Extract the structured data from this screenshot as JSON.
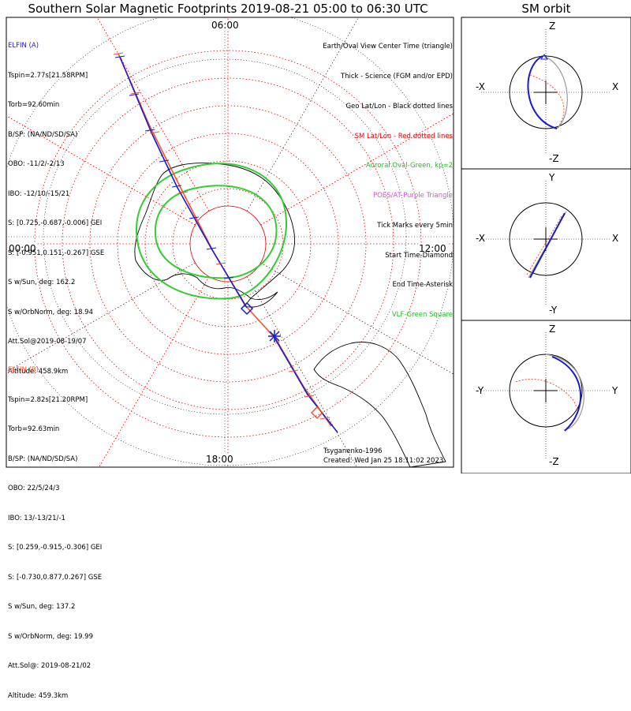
{
  "title": "Southern Solar Magnetic Footprints 2019-08-21 05:00 to 06:30 UTC",
  "orbit_title": "SM orbit",
  "local_time_labels": {
    "top": "06:00",
    "left": "00:00",
    "right": "12:00",
    "bottom": "18:00"
  },
  "elfin_a": {
    "label": "ELFIN (A)",
    "color": "#1a1acc",
    "lines": [
      "Tspin=2.77s[21.58RPM]",
      "Torb=92.60min",
      "B/SP: (NA/ND/SD/SA)",
      "OBO: -11/2/-2/13",
      "IBO: -12/10/-15/21",
      "S: [0.725,-0.687,-0.006] GEI",
      "S: [-0.951,0.151,-0.267] GSE",
      "S w/Sun, deg: 162.2",
      "S w/OrbNorm, deg: 18.94",
      "Att.Sol@2019-08-19/07",
      "Altitude: 458.9km"
    ]
  },
  "elfin_b": {
    "label": "ELFIN (B)",
    "color": "#ee5533",
    "lines": [
      "Tspin=2.82s[21.20RPM]",
      "Torb=92.63min",
      "B/SP: (NA/ND/SD/SA)",
      "OBO: 22/5/24/3",
      "IBO: 13/-13/21/-1",
      "S: [0.259,-0.915,-0.306] GEI",
      "S: [-0.730,0.877,0.267] GSE",
      "S w/Sun, deg: 137.2",
      "S w/OrbNorm, deg: 19.99",
      "Att.Sol@: 2019-08-21/02",
      "Altitude: 459.3km"
    ]
  },
  "legend": [
    {
      "text": "Earth/Oval View Center Time (triangle)",
      "color": "#000000"
    },
    {
      "text": "Thick - Science (FGM and/or EPD)",
      "color": "#000000"
    },
    {
      "text": "Geo Lat/Lon - Black dotted lines",
      "color": "#000000"
    },
    {
      "text": "SM Lat/Lon - Red dotted lines",
      "color": "#dd0000"
    },
    {
      "text": "Auroral Oval-Green, kp=2",
      "color": "#22bb22"
    },
    {
      "text": "POES/AT-Purple Triangle",
      "color": "#cc55cc"
    },
    {
      "text": "Tick Marks every 5min",
      "color": "#000000"
    },
    {
      "text": "Start Time-Diamond",
      "color": "#000000"
    },
    {
      "text": "End Time-Asterisk",
      "color": "#000000"
    },
    {
      "text": "VLF-Green Square",
      "color": "#22bb22"
    }
  ],
  "credits": {
    "model": "Tsyganenko-1996",
    "created": "Created: Wed Jan 25 18:11:02 2023"
  },
  "orbit_panels": [
    {
      "top": "Z",
      "bottom": "-Z",
      "left": "-X",
      "right": "X"
    },
    {
      "top": "Y",
      "bottom": "-Y",
      "left": "-X",
      "right": "X"
    },
    {
      "top": "Z",
      "bottom": "-Z",
      "left": "-Y",
      "right": "Y"
    }
  ],
  "colors": {
    "sm_grid": "#dd0000",
    "oval": "#33cc33",
    "elfin_a": "#1a1acc",
    "elfin_b": "#ee5533"
  }
}
